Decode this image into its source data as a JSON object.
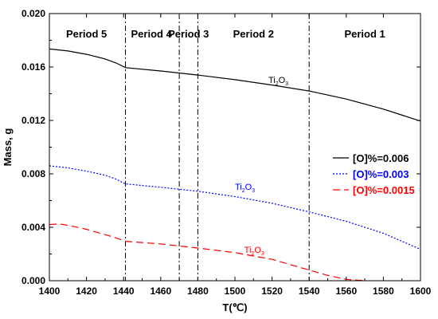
{
  "chart_data": {
    "type": "line",
    "xlabel": "T(℃)",
    "ylabel": "Mass, g",
    "xlim": [
      1400,
      1600
    ],
    "ylim": [
      0,
      0.02
    ],
    "xticks": [
      "1400",
      "1420",
      "1440",
      "1460",
      "1480",
      "1500",
      "1520",
      "1540",
      "1560",
      "1580",
      "1600"
    ],
    "yticks": [
      "0.000",
      "0.004",
      "0.008",
      "0.012",
      "0.016",
      "0.020"
    ],
    "period_boundaries": [
      1441,
      1470,
      1480,
      1540
    ],
    "periods": [
      {
        "label": "Period 5",
        "x": 1420
      },
      {
        "label": "Period 4",
        "x": 1455
      },
      {
        "label": "Period 3",
        "x": 1475
      },
      {
        "label": "Period 2",
        "x": 1510
      },
      {
        "label": "Period 1",
        "x": 1570
      }
    ],
    "series": [
      {
        "name": "[O]%=0.006",
        "color": "#000000",
        "dash": "solid",
        "x": [
          1400,
          1410,
          1420,
          1430,
          1436,
          1441,
          1460,
          1480,
          1500,
          1520,
          1540,
          1560,
          1580,
          1600
        ],
        "y": [
          0.01735,
          0.0172,
          0.01695,
          0.0166,
          0.0163,
          0.01595,
          0.0157,
          0.0154,
          0.01505,
          0.01465,
          0.0142,
          0.0136,
          0.01285,
          0.01195
        ],
        "annotation": {
          "base": "Ti",
          "sub1": "2",
          "mid": "O",
          "sub2": "3",
          "x": 1518,
          "y": 0.0148
        }
      },
      {
        "name": "[O]%=0.003",
        "color": "#0000ff",
        "dash": "dotted",
        "x": [
          1400,
          1410,
          1420,
          1430,
          1436,
          1441,
          1460,
          1480,
          1500,
          1520,
          1540,
          1560,
          1580,
          1600
        ],
        "y": [
          0.0086,
          0.00845,
          0.0082,
          0.0079,
          0.0076,
          0.00725,
          0.007,
          0.0067,
          0.0063,
          0.0058,
          0.00515,
          0.00445,
          0.00355,
          0.00235
        ],
        "annotation": {
          "base": "Ti",
          "sub1": "2",
          "mid": "O",
          "sub2": "3",
          "x": 1500,
          "y": 0.0068
        }
      },
      {
        "name": "[O]%=0.0015",
        "color": "#ff0000",
        "dash": "dashed",
        "x": [
          1400,
          1405,
          1410,
          1420,
          1430,
          1436,
          1441,
          1460,
          1480,
          1500,
          1520,
          1540,
          1550,
          1560,
          1570
        ],
        "y": [
          0.0042,
          0.00425,
          0.00415,
          0.00385,
          0.00345,
          0.0032,
          0.00295,
          0.00275,
          0.00245,
          0.0021,
          0.0016,
          0.0008,
          0.0004,
          0.0001,
          0.0
        ],
        "annotation": {
          "base": "Ti",
          "sub1": "2",
          "mid": "O",
          "sub2": "3",
          "x": 1505,
          "y": 0.0021
        }
      }
    ],
    "legend": {
      "placement": "right"
    }
  }
}
